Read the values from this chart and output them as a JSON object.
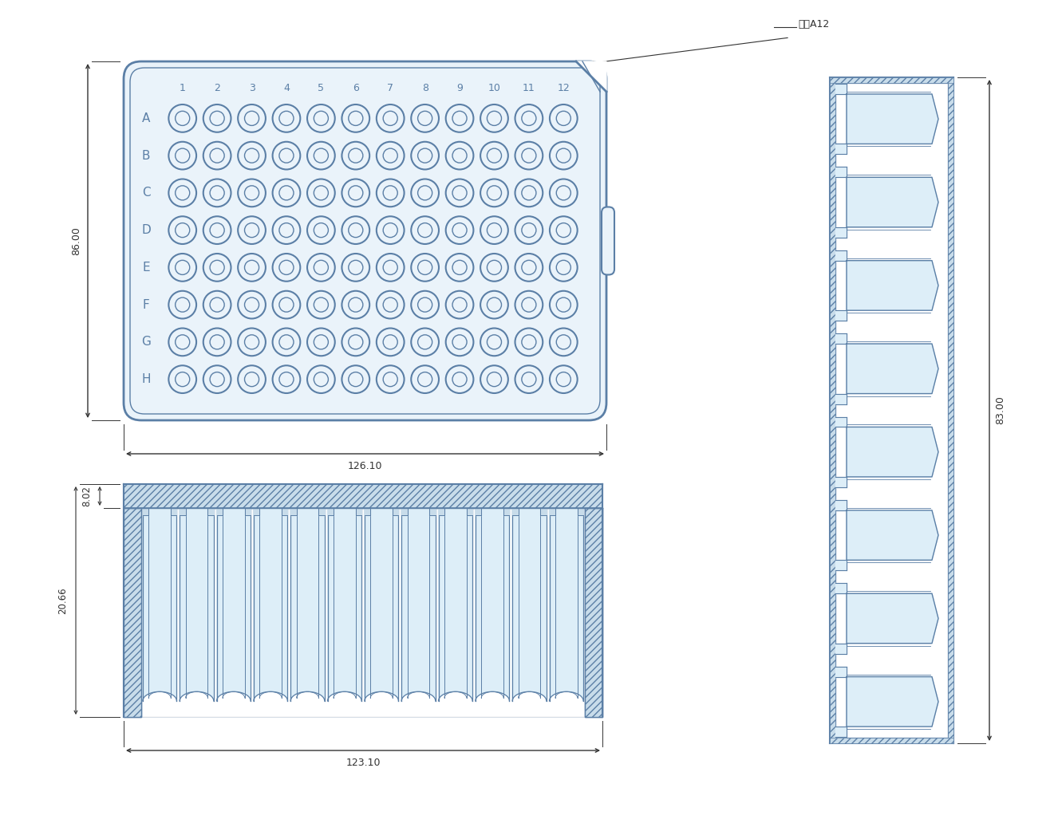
{
  "bg_color": "#ffffff",
  "line_color": "#5b7fa6",
  "dim_color": "#333333",
  "plate_fill": "#eaf3fa",
  "rows": [
    "A",
    "B",
    "C",
    "D",
    "E",
    "F",
    "G",
    "H"
  ],
  "cols": [
    "1",
    "2",
    "3",
    "4",
    "5",
    "6",
    "7",
    "8",
    "9",
    "10",
    "11",
    "12"
  ],
  "dim_86": "86.00",
  "dim_12610": "126.10",
  "dim_83": "83.00",
  "dim_802": "8.02",
  "dim_2066": "20.66",
  "dim_12310": "123.10",
  "label_cutoff": "切角A12"
}
